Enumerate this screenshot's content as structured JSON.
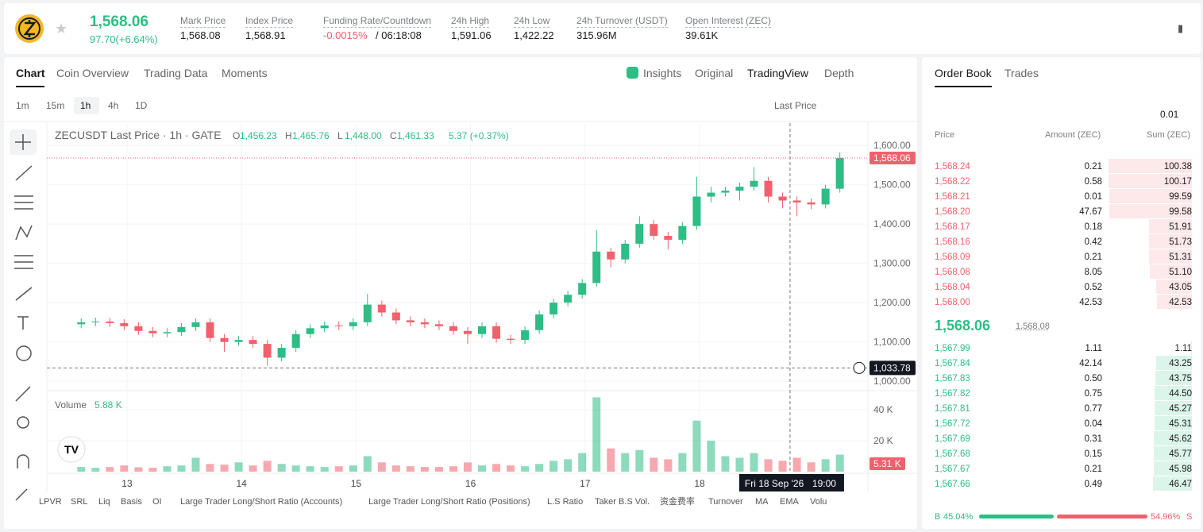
{
  "header": {
    "price": "1,568.06",
    "change": "97.70(+6.64%)",
    "stats": [
      {
        "label": "Mark Price",
        "value": "1,568.08"
      },
      {
        "label": "Index Price",
        "value": "1,568.91"
      },
      {
        "label": "Funding Rate/Countdown",
        "value": "-0.0015%",
        "extra": "/ 06:18:08"
      },
      {
        "label": "24h High",
        "value": "1,591.06"
      },
      {
        "label": "24h Low",
        "value": "1,422.22"
      },
      {
        "label": "24h Turnover (USDT)",
        "value": "315.96M"
      },
      {
        "label": "Open Interest (ZEC)",
        "value": "39.61K"
      }
    ]
  },
  "chart_tabs": [
    "Chart",
    "Coin Overview",
    "Trading Data",
    "Moments"
  ],
  "view_tabs": [
    "Insights",
    "Original",
    "TradingView",
    "Depth"
  ],
  "intervals": [
    "1m",
    "15m",
    "1h",
    "4h",
    "1D"
  ],
  "price_type": "Last Price",
  "legend": {
    "symbol": "ZECUSDT Last Price · 1h · GATE",
    "ohlc": [
      {
        "label": "O",
        "value": "1,456.23"
      },
      {
        "label": "H",
        "value": "1,465.76"
      },
      {
        "label": "L",
        "value": "1,448.00"
      },
      {
        "label": "C",
        "value": "1,461.33"
      }
    ],
    "change": "5.37 (+0.37%)"
  },
  "chart_data": {
    "type": "candlestick",
    "x": [
      12.6,
      12.725,
      12.85,
      12.975,
      13.1,
      13.225,
      13.35,
      13.475,
      13.6,
      13.725,
      13.85,
      13.975,
      14.1,
      14.225,
      14.35,
      14.475,
      14.6,
      14.725,
      14.85,
      14.975,
      15.1,
      15.225,
      15.35,
      15.475,
      15.6,
      15.725,
      15.85,
      15.975,
      16.1,
      16.225,
      16.35,
      16.475,
      16.6,
      16.725,
      16.85,
      16.975,
      17.1,
      17.225,
      17.35,
      17.475,
      17.6,
      17.725,
      17.85,
      17.975,
      18.1,
      18.225,
      18.35,
      18.475,
      18.6,
      18.725,
      18.85,
      18.975,
      19.1,
      19.225
    ],
    "open": [
      1145,
      1150,
      1152,
      1148,
      1140,
      1128,
      1122,
      1125,
      1138,
      1150,
      1110,
      1100,
      1105,
      1095,
      1060,
      1085,
      1120,
      1135,
      1142,
      1140,
      1150,
      1195,
      1175,
      1155,
      1150,
      1145,
      1140,
      1128,
      1120,
      1140,
      1108,
      1105,
      1130,
      1170,
      1200,
      1220,
      1250,
      1330,
      1310,
      1350,
      1400,
      1370,
      1360,
      1395,
      1470,
      1480,
      1485,
      1495,
      1510,
      1470,
      1460,
      1455,
      1450,
      1490
    ],
    "high": [
      1160,
      1162,
      1162,
      1158,
      1150,
      1138,
      1135,
      1148,
      1160,
      1160,
      1120,
      1115,
      1115,
      1105,
      1095,
      1130,
      1145,
      1152,
      1152,
      1160,
      1222,
      1205,
      1185,
      1165,
      1160,
      1155,
      1150,
      1138,
      1150,
      1150,
      1118,
      1140,
      1180,
      1210,
      1230,
      1260,
      1385,
      1340,
      1360,
      1420,
      1410,
      1380,
      1405,
      1520,
      1495,
      1495,
      1505,
      1545,
      1520,
      1480,
      1470,
      1465,
      1500,
      1582
    ],
    "low": [
      1135,
      1140,
      1138,
      1130,
      1118,
      1112,
      1112,
      1115,
      1128,
      1100,
      1075,
      1090,
      1085,
      1040,
      1050,
      1075,
      1110,
      1125,
      1130,
      1130,
      1140,
      1165,
      1145,
      1140,
      1135,
      1130,
      1118,
      1095,
      1110,
      1098,
      1095,
      1095,
      1120,
      1160,
      1190,
      1210,
      1240,
      1290,
      1300,
      1340,
      1360,
      1335,
      1350,
      1385,
      1455,
      1470,
      1460,
      1485,
      1455,
      1440,
      1420,
      1438,
      1440,
      1480
    ],
    "close": [
      1150,
      1152,
      1148,
      1140,
      1128,
      1122,
      1125,
      1138,
      1150,
      1110,
      1100,
      1105,
      1095,
      1060,
      1085,
      1120,
      1135,
      1142,
      1140,
      1150,
      1195,
      1175,
      1155,
      1150,
      1145,
      1140,
      1128,
      1120,
      1140,
      1108,
      1105,
      1130,
      1170,
      1200,
      1220,
      1250,
      1330,
      1310,
      1350,
      1400,
      1370,
      1360,
      1395,
      1470,
      1480,
      1485,
      1495,
      1510,
      1470,
      1460,
      1455,
      1450,
      1490,
      1568
    ],
    "up_color": "#2ebd85",
    "down_color": "#f0616d",
    "ylim": [
      976,
      1657
    ],
    "yticks": [
      {
        "value": 1000,
        "label": "1,000.00"
      },
      {
        "value": 1100,
        "label": "1,100.00"
      },
      {
        "value": 1200,
        "label": "1,200.00"
      },
      {
        "value": 1300,
        "label": "1,300.00"
      },
      {
        "value": 1400,
        "label": "1,400.00"
      },
      {
        "value": 1500,
        "label": "1,500.00"
      },
      {
        "value": 1600,
        "label": "1,600.00"
      }
    ],
    "xlim": [
      12.3,
      19.47
    ],
    "xticks": [
      13,
      14,
      15,
      16,
      17,
      18
    ],
    "last_price": {
      "value": 1568.06,
      "label": "1,568.06"
    },
    "crosshair": {
      "x": 18.79,
      "price": 1033.78,
      "price_label": "1,033.78",
      "date_label": "Fri 18 Sep '26",
      "time_label": "19:00"
    },
    "volume": {
      "title": "Volume",
      "current": "5.88 K",
      "last_label": "5.31 K",
      "values": [
        3000,
        2500,
        3000,
        4000,
        2800,
        2500,
        3500,
        4000,
        9000,
        5000,
        4500,
        6000,
        4000,
        7000,
        5000,
        4000,
        3500,
        3000,
        3500,
        4000,
        10000,
        6000,
        4000,
        3500,
        3000,
        3000,
        3500,
        6000,
        4000,
        5000,
        4000,
        3500,
        5000,
        7000,
        8000,
        12000,
        48000,
        15000,
        12000,
        14000,
        9000,
        8000,
        12000,
        33000,
        20000,
        10000,
        9000,
        12000,
        8000,
        7000,
        9000,
        6000,
        8000,
        11000
      ],
      "ylim": [
        0,
        50800
      ],
      "yticks": [
        {
          "value": 20000,
          "label": "20 K"
        },
        {
          "value": 40000,
          "label": "40 K"
        }
      ]
    }
  },
  "indicators": [
    "LPVR",
    "SRL",
    "Liq",
    "Basis",
    "OI",
    "Large Trader Long/Short Ratio (Accounts)",
    "Large Trader Long/Short Ratio (Positions)",
    "L.S Ratio",
    "Taker B.S Vol.",
    "资金费率",
    "Turnover",
    "MA",
    "EMA",
    "Volu"
  ],
  "order_book": {
    "tabs": [
      "Order Book",
      "Trades"
    ],
    "precision": "0.01",
    "columns": [
      "Price",
      "Amount (ZEC)",
      "Sum (ZEC)"
    ],
    "asks": [
      [
        "1,568.24",
        "0.21",
        "100.38"
      ],
      [
        "1,568.22",
        "0.58",
        "100.17"
      ],
      [
        "1,568.21",
        "0.01",
        "99.59"
      ],
      [
        "1,568.20",
        "47.67",
        "99.58"
      ],
      [
        "1,568.17",
        "0.18",
        "51.91"
      ],
      [
        "1,568.16",
        "0.42",
        "51.73"
      ],
      [
        "1,568.09",
        "0.21",
        "51.31"
      ],
      [
        "1,568.08",
        "8.05",
        "51.10"
      ],
      [
        "1,568.04",
        "0.52",
        "43.05"
      ],
      [
        "1,568.00",
        "42.53",
        "42.53"
      ]
    ],
    "last": "1,568.06",
    "mark": "1,568.08",
    "bids": [
      [
        "1,567.99",
        "1.11",
        "1.11"
      ],
      [
        "1,567.84",
        "42.14",
        "43.25"
      ],
      [
        "1,567.83",
        "0.50",
        "43.75"
      ],
      [
        "1,567.82",
        "0.75",
        "44.50"
      ],
      [
        "1,567.81",
        "0.77",
        "45.27"
      ],
      [
        "1,567.72",
        "0.04",
        "45.31"
      ],
      [
        "1,567.69",
        "0.31",
        "45.62"
      ],
      [
        "1,567.68",
        "0.15",
        "45.77"
      ],
      [
        "1,567.67",
        "0.21",
        "45.98"
      ],
      [
        "1,567.66",
        "0.49",
        "46.47"
      ]
    ],
    "buy": {
      "label": "B",
      "value": "45.04%"
    },
    "sell": {
      "label": "S",
      "value": "54.96%"
    }
  }
}
